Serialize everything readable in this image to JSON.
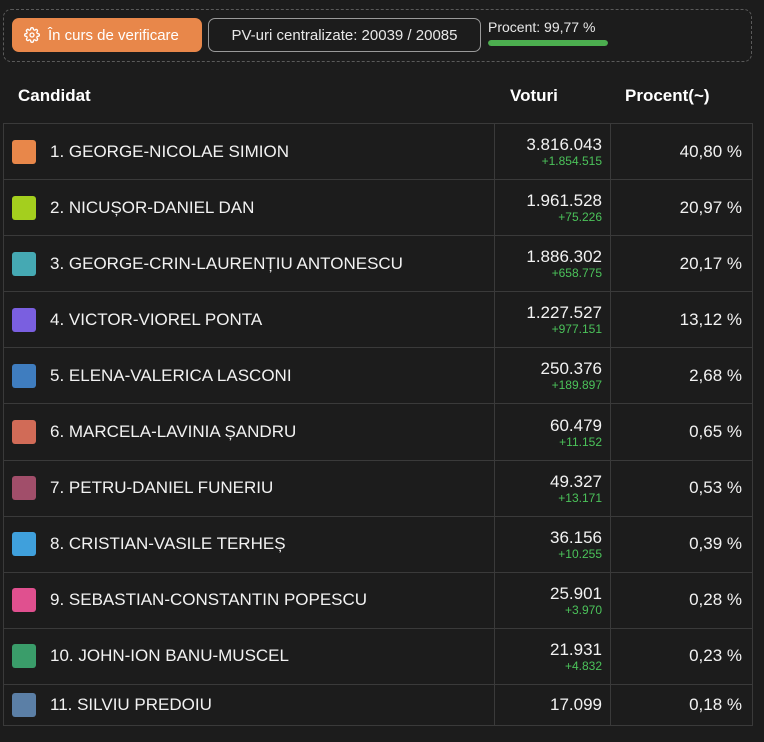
{
  "status": {
    "button_label": "În curs de verificare",
    "pv_text": "PV-uri centralizate: 20039 / 20085",
    "procent_text": "Procent: 99,77 %",
    "progress_fraction": 0.9977,
    "accent_color": "#e8874a",
    "progress_color": "#4cae4f"
  },
  "table": {
    "headers": {
      "candidat": "Candidat",
      "voturi": "Voturi",
      "procent": "Procent(~)"
    },
    "rows": [
      {
        "name": "1. GEORGE-NICOLAE SIMION",
        "votes": "3.816.043",
        "delta": "+1.854.515",
        "pct": "40,80 %",
        "color": "#e8874a"
      },
      {
        "name": "2. NICUȘOR-DANIEL DAN",
        "votes": "1.961.528",
        "delta": "+75.226",
        "pct": "20,97 %",
        "color": "#a4cf1e"
      },
      {
        "name": "3. GEORGE-CRIN-LAURENȚIU ANTONESCU",
        "votes": "1.886.302",
        "delta": "+658.775",
        "pct": "20,17 %",
        "color": "#45a9b3"
      },
      {
        "name": "4. VICTOR-VIOREL PONTA",
        "votes": "1.227.527",
        "delta": "+977.151",
        "pct": "13,12 %",
        "color": "#7a5fe0"
      },
      {
        "name": "5. ELENA-VALERICA LASCONI",
        "votes": "250.376",
        "delta": "+189.897",
        "pct": "2,68 %",
        "color": "#3f7dbf"
      },
      {
        "name": "6. MARCELA-LAVINIA ȘANDRU",
        "votes": "60.479",
        "delta": "+11.152",
        "pct": "0,65 %",
        "color": "#d16b57"
      },
      {
        "name": "7. PETRU-DANIEL FUNERIU",
        "votes": "49.327",
        "delta": "+13.171",
        "pct": "0,53 %",
        "color": "#a14e6a"
      },
      {
        "name": "8. CRISTIAN-VASILE TERHEȘ",
        "votes": "36.156",
        "delta": "+10.255",
        "pct": "0,39 %",
        "color": "#3fa0dc"
      },
      {
        "name": "9. SEBASTIAN-CONSTANTIN POPESCU",
        "votes": "25.901",
        "delta": "+3.970",
        "pct": "0,28 %",
        "color": "#e0508f"
      },
      {
        "name": "10. JOHN-ION BANU-MUSCEL",
        "votes": "21.931",
        "delta": "+4.832",
        "pct": "0,23 %",
        "color": "#3a9d6a"
      },
      {
        "name": "11. SILVIU PREDOIU",
        "votes": "17.099",
        "delta": "",
        "pct": "0,18 %",
        "color": "#5b7fa6"
      }
    ]
  }
}
